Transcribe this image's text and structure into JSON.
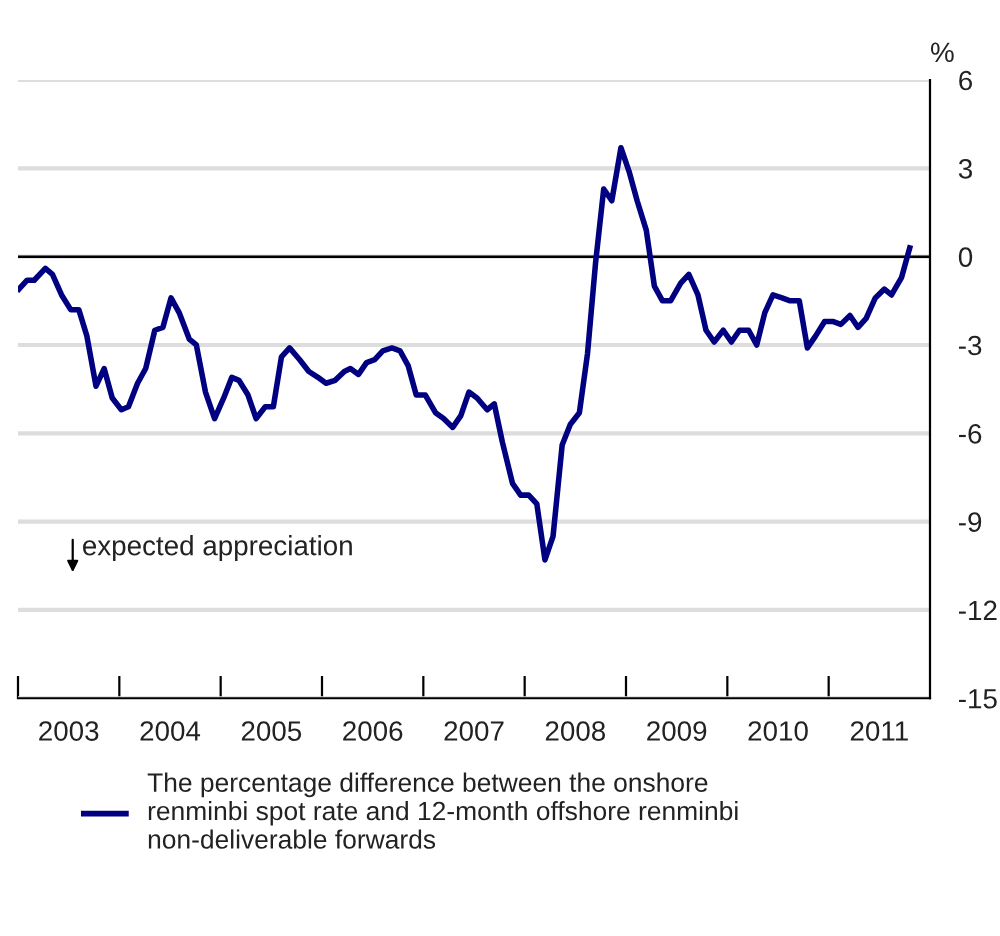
{
  "chart_data": {
    "type": "line",
    "x": [
      2003.01,
      2003.09,
      2003.16,
      2003.27,
      2003.34,
      2003.43,
      2003.52,
      2003.6,
      2003.68,
      2003.77,
      2003.85,
      2003.93,
      2004.02,
      2004.09,
      2004.18,
      2004.26,
      2004.35,
      2004.43,
      2004.51,
      2004.59,
      2004.69,
      2004.76,
      2004.85,
      2004.94,
      2005.03,
      2005.11,
      2005.18,
      2005.27,
      2005.35,
      2005.44,
      2005.52,
      2005.6,
      2005.68,
      2005.78,
      2005.87,
      2005.96,
      2006.04,
      2006.13,
      2006.22,
      2006.28,
      2006.36,
      2006.44,
      2006.52,
      2006.6,
      2006.69,
      2006.77,
      2006.85,
      2006.93,
      2007.02,
      2007.12,
      2007.2,
      2007.29,
      2007.37,
      2007.45,
      2007.53,
      2007.63,
      2007.7,
      2007.78,
      2007.88,
      2007.96,
      2008.04,
      2008.12,
      2008.2,
      2008.28,
      2008.37,
      2008.45,
      2008.54,
      2008.62,
      2008.7,
      2008.78,
      2008.86,
      2008.95,
      2009.03,
      2009.11,
      2009.2,
      2009.28,
      2009.36,
      2009.44,
      2009.54,
      2009.62,
      2009.71,
      2009.79,
      2009.87,
      2009.96,
      2010.04,
      2010.12,
      2010.21,
      2010.29,
      2010.37,
      2010.45,
      2010.54,
      2010.62,
      2010.71,
      2010.79,
      2010.87,
      2010.96,
      2011.04,
      2011.12,
      2011.21,
      2011.29,
      2011.37,
      2011.46,
      2011.55,
      2011.62,
      2011.72,
      2011.8
    ],
    "series": [
      {
        "name": "The percentage difference between the onshore renminbi spot rate and 12-month offshore renminbi non-deliverable forwards",
        "color": "#000080",
        "values": [
          -1.1,
          -0.8,
          -0.8,
          -0.4,
          -0.6,
          -1.3,
          -1.8,
          -1.8,
          -2.7,
          -4.4,
          -3.8,
          -4.8,
          -5.2,
          -5.1,
          -4.3,
          -3.8,
          -2.5,
          -2.4,
          -1.4,
          -1.9,
          -2.8,
          -3.0,
          -4.6,
          -5.5,
          -4.8,
          -4.1,
          -4.2,
          -4.7,
          -5.5,
          -5.1,
          -5.1,
          -3.4,
          -3.1,
          -3.5,
          -3.9,
          -4.1,
          -4.3,
          -4.2,
          -3.9,
          -3.8,
          -4.0,
          -3.6,
          -3.5,
          -3.2,
          -3.1,
          -3.2,
          -3.7,
          -4.7,
          -4.7,
          -5.3,
          -5.5,
          -5.8,
          -5.4,
          -4.6,
          -4.8,
          -5.2,
          -5.0,
          -6.3,
          -7.7,
          -8.1,
          -8.1,
          -8.4,
          -10.3,
          -9.5,
          -6.4,
          -5.7,
          -5.3,
          -3.3,
          -0.2,
          2.3,
          1.9,
          3.7,
          2.9,
          1.9,
          0.9,
          -1.0,
          -1.5,
          -1.5,
          -0.9,
          -0.6,
          -1.3,
          -2.5,
          -2.9,
          -2.5,
          -2.9,
          -2.5,
          -2.5,
          -3.0,
          -1.9,
          -1.3,
          -1.4,
          -1.5,
          -1.5,
          -3.1,
          -2.7,
          -2.2,
          -2.2,
          -2.3,
          -2.0,
          -2.4,
          -2.1,
          -1.4,
          -1.1,
          -1.3,
          -0.7,
          0.3
        ]
      }
    ],
    "ylabel": "%",
    "xlim": [
      2003,
      2012
    ],
    "xticks": [
      {
        "value": 2003,
        "label": null
      },
      {
        "value": 2004,
        "label": null
      },
      {
        "value": 2005,
        "label": null
      },
      {
        "value": 2006,
        "label": null
      },
      {
        "value": 2007,
        "label": null
      },
      {
        "value": 2008,
        "label": null
      },
      {
        "value": 2009,
        "label": null
      },
      {
        "value": 2010,
        "label": null
      },
      {
        "value": 2011,
        "label": null
      },
      {
        "value": 2003.5,
        "label": "2003"
      },
      {
        "value": 2004.5,
        "label": "2004"
      },
      {
        "value": 2005.5,
        "label": "2005"
      },
      {
        "value": 2006.5,
        "label": "2006"
      },
      {
        "value": 2007.5,
        "label": "2007"
      },
      {
        "value": 2008.5,
        "label": "2008"
      },
      {
        "value": 2009.5,
        "label": "2009"
      },
      {
        "value": 2010.5,
        "label": "2010"
      },
      {
        "value": 2011.5,
        "label": "2011"
      }
    ],
    "ylim": [
      -15,
      6
    ],
    "yticks": [
      6,
      3,
      0,
      -3,
      -6,
      -9,
      -12,
      -15
    ],
    "grid": "y",
    "ref_lines": [
      {
        "axis": "y",
        "value": 0,
        "color": "#000000"
      }
    ],
    "annotations": [
      "expected appreciation"
    ],
    "legend": "bottom"
  }
}
